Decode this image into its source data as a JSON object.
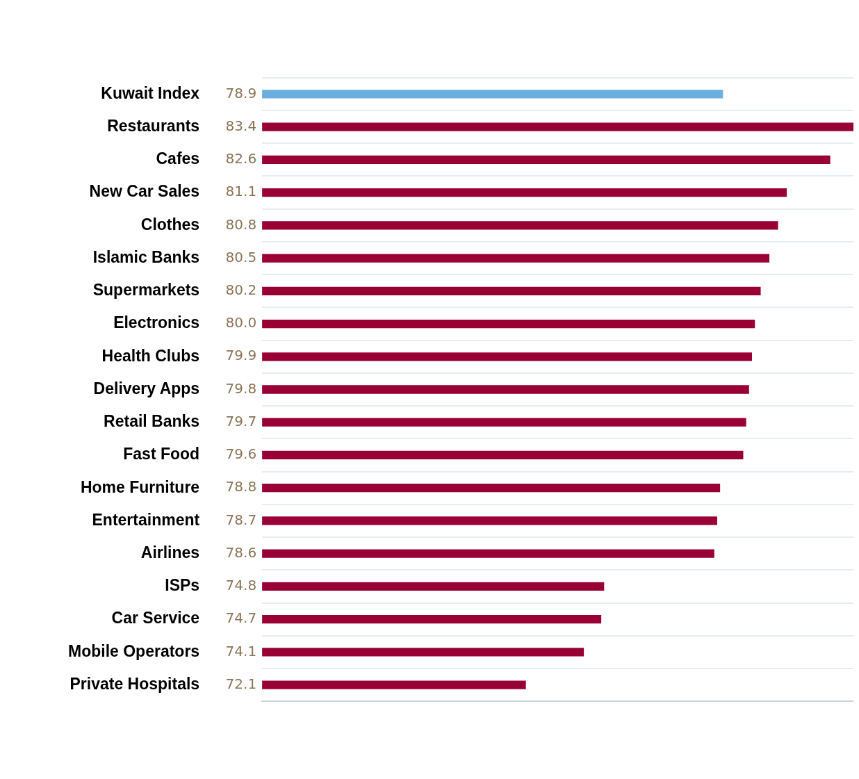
{
  "chart_data": {
    "type": "bar",
    "orientation": "horizontal",
    "categories": [
      "Kuwait Index",
      "Restaurants",
      "Cafes",
      "New Car Sales",
      "Clothes",
      "Islamic Banks",
      "Supermarkets",
      "Electronics",
      "Health Clubs",
      "Delivery Apps",
      "Retail Banks",
      "Fast Food",
      "Home Furniture",
      "Entertainment",
      "Airlines",
      "ISPs",
      "Car Service",
      "Mobile Operators",
      "Private Hospitals"
    ],
    "values": [
      78.9,
      83.4,
      82.6,
      81.1,
      80.8,
      80.5,
      80.2,
      80.0,
      79.9,
      79.8,
      79.7,
      79.6,
      78.8,
      78.7,
      78.6,
      74.8,
      74.7,
      74.1,
      72.1
    ],
    "value_labels": [
      "78.9",
      "83.4",
      "82.6",
      "81.1",
      "80.8",
      "80.5",
      "80.2",
      "80.0",
      "79.9",
      "79.8",
      "79.7",
      "79.6",
      "78.8",
      "78.7",
      "78.6",
      "74.8",
      "74.7",
      "74.1",
      "72.1"
    ],
    "colors": [
      "#6aaee0",
      "#990033",
      "#990033",
      "#990033",
      "#990033",
      "#990033",
      "#990033",
      "#990033",
      "#990033",
      "#990033",
      "#990033",
      "#990033",
      "#990033",
      "#990033",
      "#990033",
      "#990033",
      "#990033",
      "#990033",
      "#990033"
    ],
    "xlim": [
      63,
      83.4
    ],
    "tick_labels": "y",
    "grid": "y",
    "legend": false
  }
}
